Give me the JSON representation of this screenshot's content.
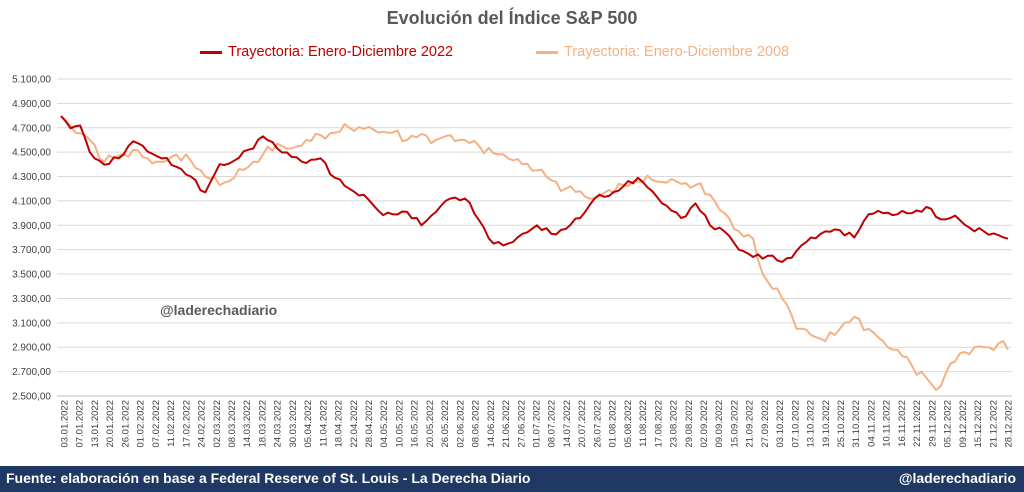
{
  "chart_data": {
    "type": "line",
    "title": "Evolución del Índice S&P 500",
    "ylim": [
      2500,
      5100
    ],
    "yticks": [
      "2.500,00",
      "2.700,00",
      "2.900,00",
      "3.100,00",
      "3.300,00",
      "3.500,00",
      "3.700,00",
      "3.900,00",
      "4.100,00",
      "4.300,00",
      "4.500,00",
      "4.700,00",
      "4.900,00",
      "5.100,00"
    ],
    "ytick_values": [
      2500,
      2700,
      2900,
      3100,
      3300,
      3500,
      3700,
      3900,
      4100,
      4300,
      4500,
      4700,
      4900,
      5100
    ],
    "grid": "horizontal",
    "legend_position": "top",
    "categories": [
      "03.01.2022",
      "07.01.2022",
      "13.01.2022",
      "20.01.2022",
      "26.01.2022",
      "01.02.2022",
      "07.02.2022",
      "11.02.2022",
      "17.02.2022",
      "24.02.2022",
      "02.03.2022",
      "08.03.2022",
      "14.03.2022",
      "18.03.2022",
      "24.03.2022",
      "30.03.2022",
      "05.04.2022",
      "11.04.2022",
      "18.04.2022",
      "22.04.2022",
      "28.04.2022",
      "04.05.2022",
      "10.05.2022",
      "16.05.2022",
      "20.05.2022",
      "26.05.2022",
      "02.06.2022",
      "08.06.2022",
      "14.06.2022",
      "21.06.2022",
      "27.06.2022",
      "01.07.2022",
      "08.07.2022",
      "14.07.2022",
      "20.07.2022",
      "26.07.2022",
      "01.08.2022",
      "05.08.2022",
      "11.08.2022",
      "17.08.2022",
      "23.08.2022",
      "29.08.2022",
      "02.09.2022",
      "09.09.2022",
      "15.09.2022",
      "21.09.2022",
      "27.09.2022",
      "03.10.2022",
      "07.10.2022",
      "13.10.2022",
      "19.10.2022",
      "25.10.2022",
      "31.10.2022",
      "04.11.2022",
      "10.11.2022",
      "16.11.2022",
      "22.11.2022",
      "29.11.2022",
      "05.12.2022",
      "09.12.2022",
      "15.12.2022",
      "21.12.2022",
      "28.12.2022"
    ],
    "series": [
      {
        "name": "Trayectoria: Enero-Diciembre 2022",
        "color": "#c00000",
        "anchors": [
          [
            0,
            4796
          ],
          [
            2,
            4696
          ],
          [
            4,
            4719
          ],
          [
            6,
            4500
          ],
          [
            9,
            4397
          ],
          [
            12,
            4450
          ],
          [
            15,
            4589
          ],
          [
            18,
            4505
          ],
          [
            21,
            4449
          ],
          [
            24,
            4380
          ],
          [
            27,
            4300
          ],
          [
            30,
            4170
          ],
          [
            33,
            4401
          ],
          [
            36,
            4430
          ],
          [
            39,
            4520
          ],
          [
            42,
            4630
          ],
          [
            45,
            4530
          ],
          [
            48,
            4460
          ],
          [
            51,
            4410
          ],
          [
            54,
            4450
          ],
          [
            57,
            4290
          ],
          [
            60,
            4200
          ],
          [
            63,
            4150
          ],
          [
            66,
            4020
          ],
          [
            69,
            3990
          ],
          [
            72,
            4010
          ],
          [
            75,
            3900
          ],
          [
            78,
            4010
          ],
          [
            81,
            4120
          ],
          [
            84,
            4120
          ],
          [
            87,
            3940
          ],
          [
            90,
            3750
          ],
          [
            93,
            3750
          ],
          [
            96,
            3830
          ],
          [
            99,
            3900
          ],
          [
            102,
            3830
          ],
          [
            105,
            3870
          ],
          [
            108,
            3960
          ],
          [
            111,
            4120
          ],
          [
            114,
            4140
          ],
          [
            117,
            4220
          ],
          [
            120,
            4290
          ],
          [
            123,
            4180
          ],
          [
            126,
            4060
          ],
          [
            129,
            3960
          ],
          [
            132,
            4080
          ],
          [
            135,
            3900
          ],
          [
            138,
            3850
          ],
          [
            141,
            3700
          ],
          [
            144,
            3640
          ],
          [
            147,
            3650
          ],
          [
            150,
            3600
          ],
          [
            153,
            3690
          ],
          [
            156,
            3800
          ],
          [
            159,
            3850
          ],
          [
            162,
            3860
          ],
          [
            165,
            3800
          ],
          [
            168,
            3990
          ],
          [
            171,
            4000
          ],
          [
            174,
            3990
          ],
          [
            177,
            4000
          ],
          [
            180,
            4050
          ],
          [
            183,
            3950
          ],
          [
            186,
            3980
          ],
          [
            189,
            3880
          ],
          [
            192,
            3850
          ],
          [
            195,
            3820
          ],
          [
            197,
            3790
          ]
        ]
      },
      {
        "name": "Trayectoria: Enero-Diciembre 2008",
        "color": "#f4b183",
        "anchors": [
          [
            0,
            4796
          ],
          [
            3,
            4660
          ],
          [
            6,
            4600
          ],
          [
            9,
            4420
          ],
          [
            12,
            4470
          ],
          [
            15,
            4520
          ],
          [
            18,
            4450
          ],
          [
            21,
            4420
          ],
          [
            24,
            4480
          ],
          [
            27,
            4430
          ],
          [
            30,
            4300
          ],
          [
            33,
            4230
          ],
          [
            36,
            4290
          ],
          [
            39,
            4380
          ],
          [
            42,
            4480
          ],
          [
            45,
            4570
          ],
          [
            48,
            4530
          ],
          [
            51,
            4600
          ],
          [
            54,
            4640
          ],
          [
            57,
            4660
          ],
          [
            60,
            4700
          ],
          [
            63,
            4690
          ],
          [
            66,
            4660
          ],
          [
            69,
            4660
          ],
          [
            72,
            4600
          ],
          [
            75,
            4650
          ],
          [
            78,
            4600
          ],
          [
            81,
            4640
          ],
          [
            84,
            4600
          ],
          [
            87,
            4550
          ],
          [
            90,
            4490
          ],
          [
            93,
            4450
          ],
          [
            96,
            4400
          ],
          [
            99,
            4350
          ],
          [
            102,
            4270
          ],
          [
            105,
            4200
          ],
          [
            108,
            4180
          ],
          [
            111,
            4120
          ],
          [
            114,
            4190
          ],
          [
            117,
            4230
          ],
          [
            120,
            4260
          ],
          [
            123,
            4270
          ],
          [
            126,
            4250
          ],
          [
            129,
            4240
          ],
          [
            132,
            4230
          ],
          [
            135,
            4150
          ],
          [
            138,
            4000
          ],
          [
            141,
            3850
          ],
          [
            144,
            3790
          ],
          [
            146,
            3500
          ],
          [
            148,
            3380
          ],
          [
            150,
            3300
          ],
          [
            151,
            3250
          ],
          [
            153,
            3050
          ],
          [
            156,
            3000
          ],
          [
            159,
            2950
          ],
          [
            162,
            3050
          ],
          [
            165,
            3150
          ],
          [
            168,
            3050
          ],
          [
            171,
            2950
          ],
          [
            174,
            2880
          ],
          [
            177,
            2750
          ],
          [
            180,
            2650
          ],
          [
            182,
            2550
          ],
          [
            184,
            2680
          ],
          [
            187,
            2850
          ],
          [
            190,
            2900
          ],
          [
            193,
            2900
          ],
          [
            196,
            2950
          ],
          [
            197,
            2880
          ]
        ]
      }
    ]
  },
  "watermark": "@laderechadiario",
  "footer": {
    "source": "Fuente: elaboración en base a Federal Reserve of St. Louis - La Derecha Diario",
    "handle": "@laderechadiario"
  }
}
